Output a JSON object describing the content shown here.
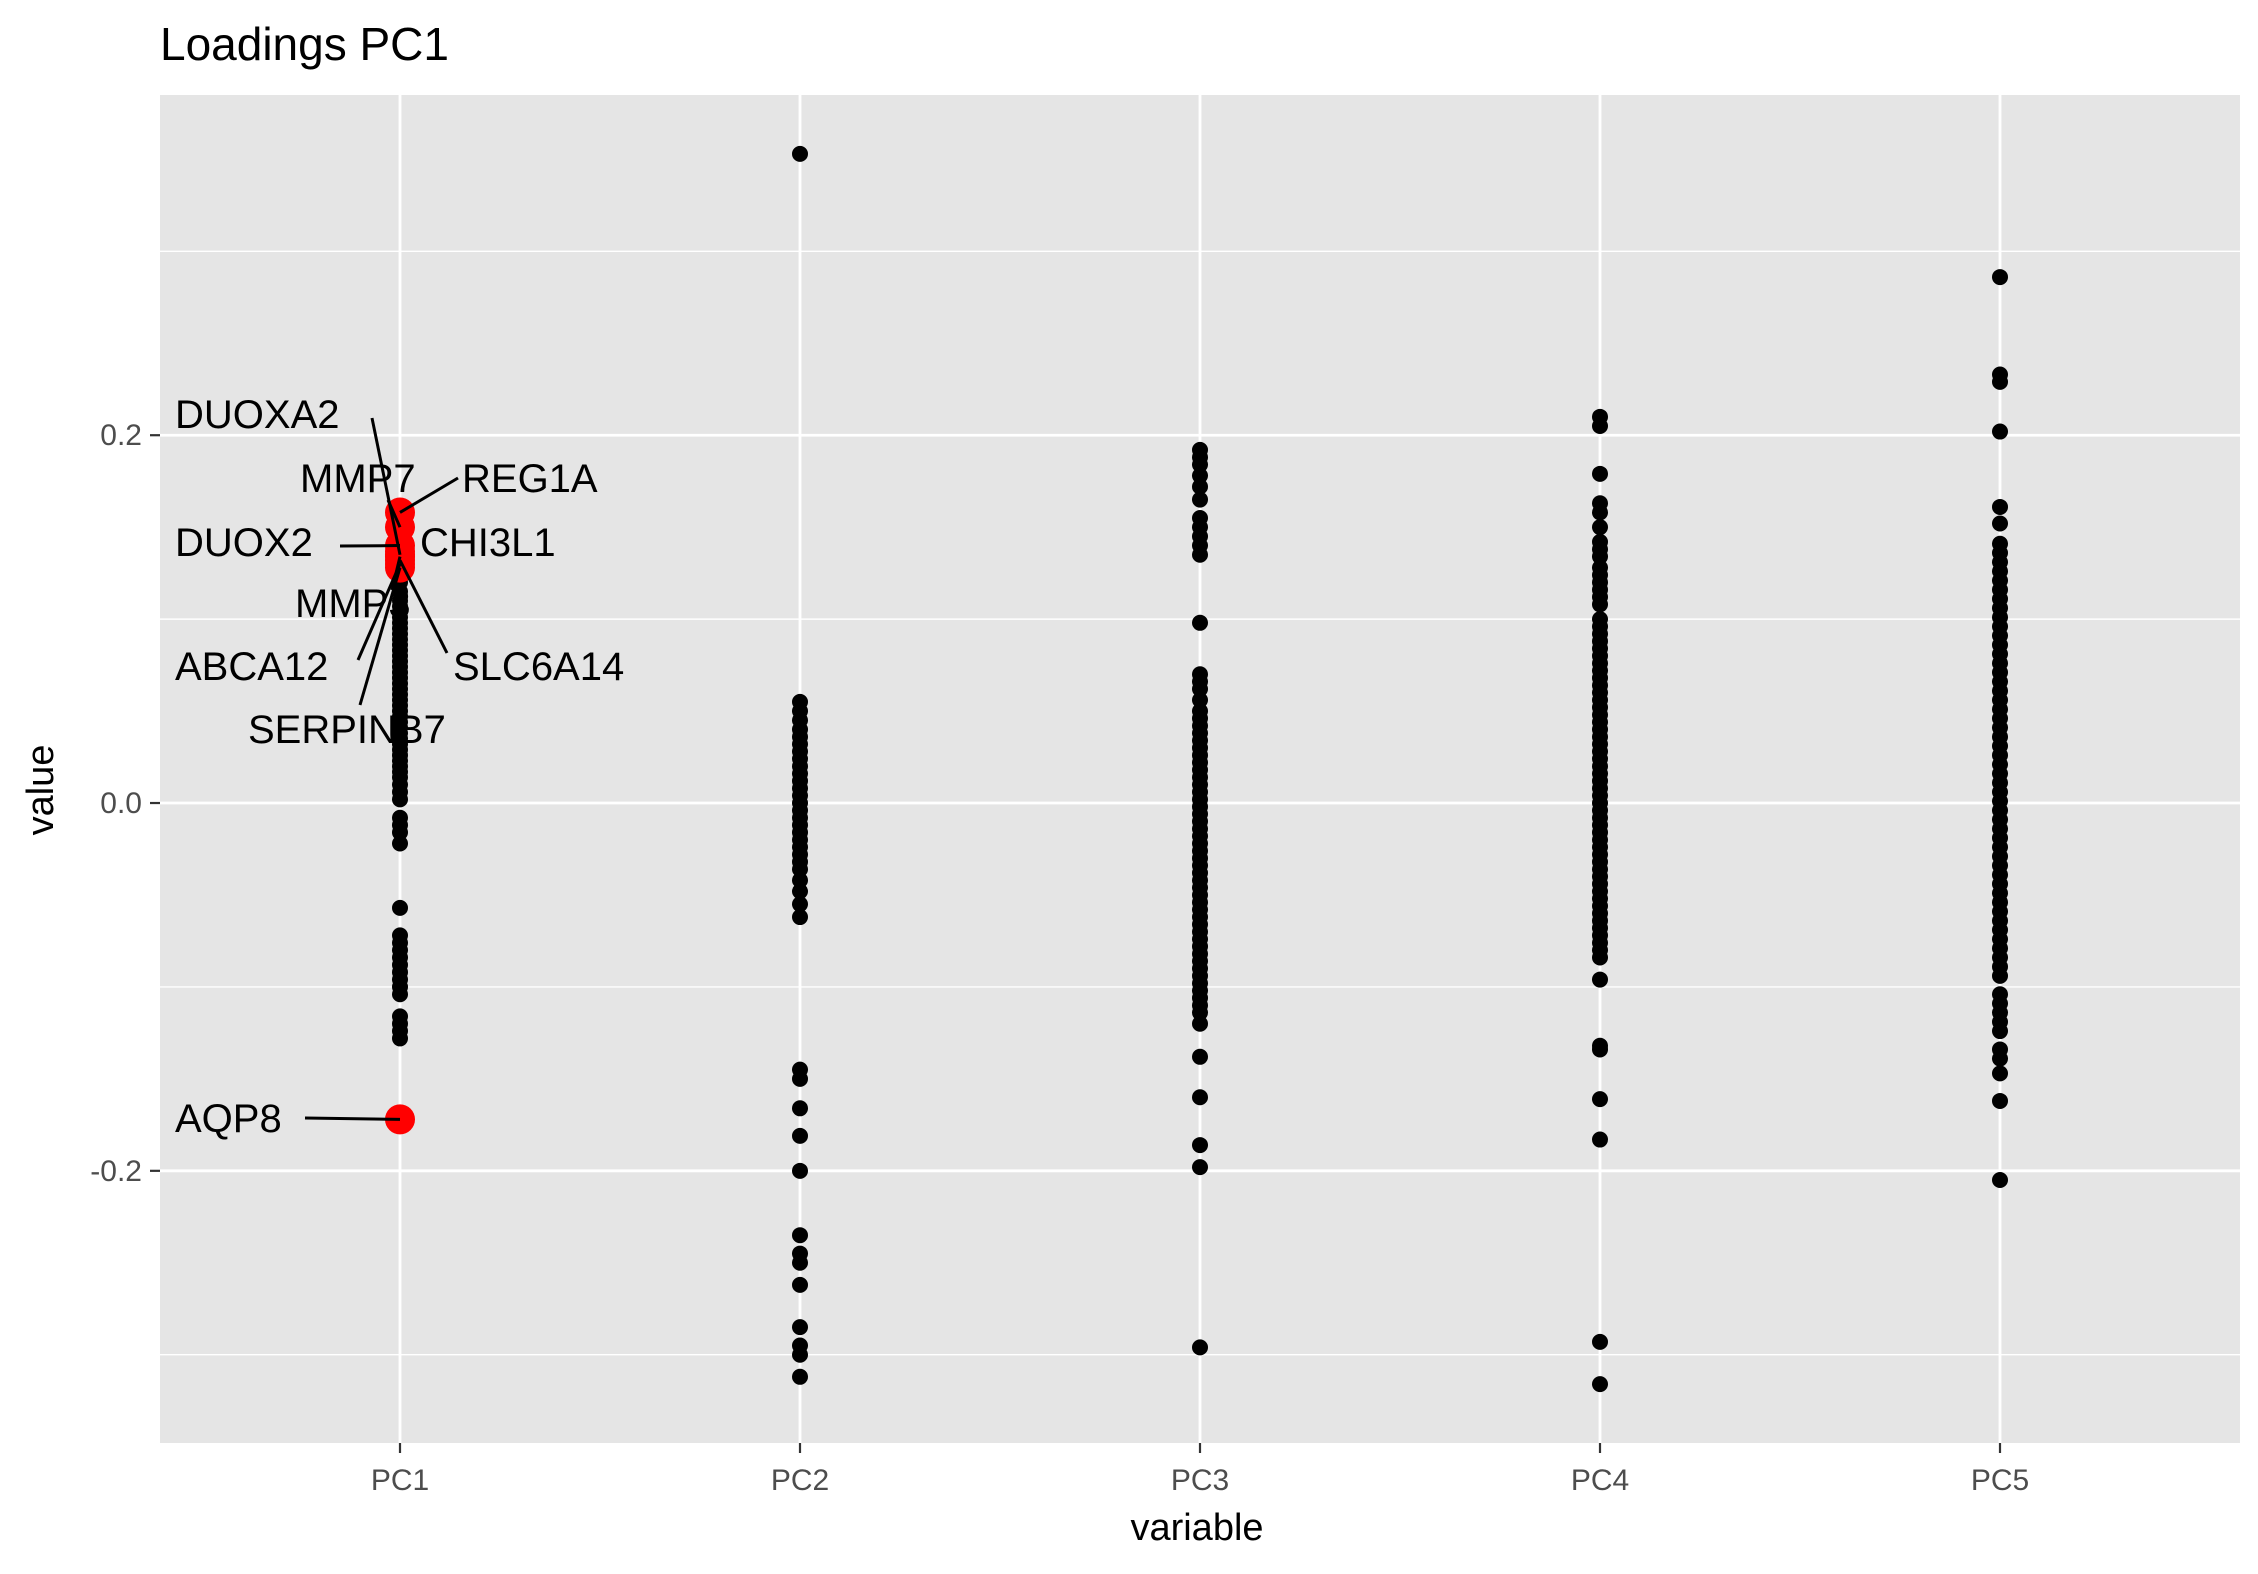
{
  "chart_data": {
    "type": "scatter",
    "title": "Loadings PC1",
    "xlabel": "variable",
    "ylabel": "value",
    "categories": [
      "PC1",
      "PC2",
      "PC3",
      "PC4",
      "PC5"
    ],
    "ylim": [
      -0.348,
      0.385
    ],
    "yticks": [
      -0.2,
      0.0,
      0.2
    ],
    "ytick_labels": [
      "-0.2",
      "0.0",
      "0.2"
    ],
    "grid": true,
    "colors": {
      "panel": "#e5e5e5",
      "grid": "#ffffff",
      "point": "#000000",
      "highlight": "#ff0000",
      "tick": "#333333",
      "tick_label": "#4d4d4d"
    },
    "series": [
      {
        "category": "PC1",
        "values": [
          0.12,
          0.115,
          0.11,
          0.107,
          0.104,
          0.101,
          0.098,
          0.095,
          0.092,
          0.089,
          0.086,
          0.083,
          0.08,
          0.077,
          0.074,
          0.071,
          0.068,
          0.065,
          0.062,
          0.059,
          0.056,
          0.053,
          0.05,
          0.047,
          0.044,
          0.041,
          0.038,
          0.035,
          0.032,
          0.029,
          0.026,
          0.023,
          0.02,
          0.017,
          0.014,
          0.01,
          0.006,
          0.002,
          -0.008,
          -0.012,
          -0.016,
          -0.022,
          -0.057,
          -0.072,
          -0.076,
          -0.08,
          -0.084,
          -0.088,
          -0.092,
          -0.096,
          -0.1,
          -0.104,
          -0.116,
          -0.12,
          -0.124,
          -0.128
        ]
      },
      {
        "category": "PC2",
        "values": [
          0.353,
          0.055,
          0.05,
          0.045,
          0.04,
          0.036,
          0.032,
          0.028,
          0.024,
          0.02,
          0.016,
          0.012,
          0.008,
          0.004,
          0.0,
          -0.004,
          -0.008,
          -0.012,
          -0.016,
          -0.02,
          -0.024,
          -0.028,
          -0.032,
          -0.036,
          -0.042,
          -0.048,
          -0.055,
          -0.062,
          -0.145,
          -0.15,
          -0.166,
          -0.181,
          -0.2,
          -0.235,
          -0.245,
          -0.25,
          -0.262,
          -0.285,
          -0.295,
          -0.3,
          -0.312
        ]
      },
      {
        "category": "PC3",
        "values": [
          0.192,
          0.188,
          0.184,
          0.178,
          0.172,
          0.165,
          0.155,
          0.15,
          0.145,
          0.14,
          0.135,
          0.098,
          0.07,
          0.066,
          0.062,
          0.056,
          0.05,
          0.046,
          0.042,
          0.038,
          0.034,
          0.03,
          0.026,
          0.022,
          0.018,
          0.014,
          0.01,
          0.006,
          0.002,
          -0.002,
          -0.006,
          -0.01,
          -0.014,
          -0.018,
          -0.022,
          -0.026,
          -0.03,
          -0.034,
          -0.038,
          -0.042,
          -0.046,
          -0.05,
          -0.054,
          -0.058,
          -0.062,
          -0.066,
          -0.07,
          -0.074,
          -0.078,
          -0.082,
          -0.086,
          -0.09,
          -0.094,
          -0.098,
          -0.102,
          -0.106,
          -0.11,
          -0.114,
          -0.12,
          -0.138,
          -0.16,
          -0.186,
          -0.198,
          -0.296
        ]
      },
      {
        "category": "PC4",
        "values": [
          0.21,
          0.205,
          0.179,
          0.163,
          0.158,
          0.15,
          0.142,
          0.138,
          0.134,
          0.128,
          0.124,
          0.12,
          0.116,
          0.112,
          0.108,
          0.1,
          0.096,
          0.092,
          0.088,
          0.084,
          0.08,
          0.076,
          0.072,
          0.068,
          0.064,
          0.06,
          0.056,
          0.052,
          0.048,
          0.044,
          0.04,
          0.036,
          0.032,
          0.028,
          0.024,
          0.02,
          0.016,
          0.012,
          0.008,
          0.004,
          0.0,
          -0.004,
          -0.008,
          -0.012,
          -0.016,
          -0.02,
          -0.024,
          -0.028,
          -0.032,
          -0.036,
          -0.04,
          -0.044,
          -0.048,
          -0.052,
          -0.056,
          -0.06,
          -0.064,
          -0.068,
          -0.072,
          -0.076,
          -0.08,
          -0.084,
          -0.096,
          -0.132,
          -0.134,
          -0.161,
          -0.183,
          -0.293,
          -0.316
        ]
      },
      {
        "category": "PC5",
        "values": [
          0.286,
          0.233,
          0.229,
          0.202,
          0.161,
          0.152,
          0.141,
          0.136,
          0.131,
          0.126,
          0.121,
          0.116,
          0.111,
          0.106,
          0.101,
          0.096,
          0.091,
          0.086,
          0.081,
          0.076,
          0.071,
          0.066,
          0.061,
          0.056,
          0.051,
          0.046,
          0.041,
          0.036,
          0.031,
          0.026,
          0.021,
          0.016,
          0.011,
          0.006,
          0.001,
          -0.004,
          -0.009,
          -0.014,
          -0.019,
          -0.024,
          -0.029,
          -0.034,
          -0.039,
          -0.044,
          -0.049,
          -0.054,
          -0.059,
          -0.064,
          -0.069,
          -0.074,
          -0.079,
          -0.084,
          -0.089,
          -0.094,
          -0.104,
          -0.109,
          -0.114,
          -0.119,
          -0.124,
          -0.134,
          -0.139,
          -0.147,
          -0.162,
          -0.205
        ]
      }
    ],
    "highlighted": [
      {
        "label": "DUOXA2",
        "category": "PC1",
        "value": 0.135
      },
      {
        "label": "MMP7",
        "category": "PC1",
        "value": 0.15
      },
      {
        "label": "REG1A",
        "category": "PC1",
        "value": 0.158
      },
      {
        "label": "DUOX2",
        "category": "PC1",
        "value": 0.14
      },
      {
        "label": "CHI3L1",
        "category": "PC1",
        "value": 0.137
      },
      {
        "label": "MMP3",
        "category": "PC1",
        "value": 0.134
      },
      {
        "label": "ABCA12",
        "category": "PC1",
        "value": 0.13
      },
      {
        "label": "SLC6A14",
        "category": "PC1",
        "value": 0.132
      },
      {
        "label": "SERPINB7",
        "category": "PC1",
        "value": 0.128
      },
      {
        "label": "AQP8",
        "category": "PC1",
        "value": -0.172
      }
    ]
  }
}
